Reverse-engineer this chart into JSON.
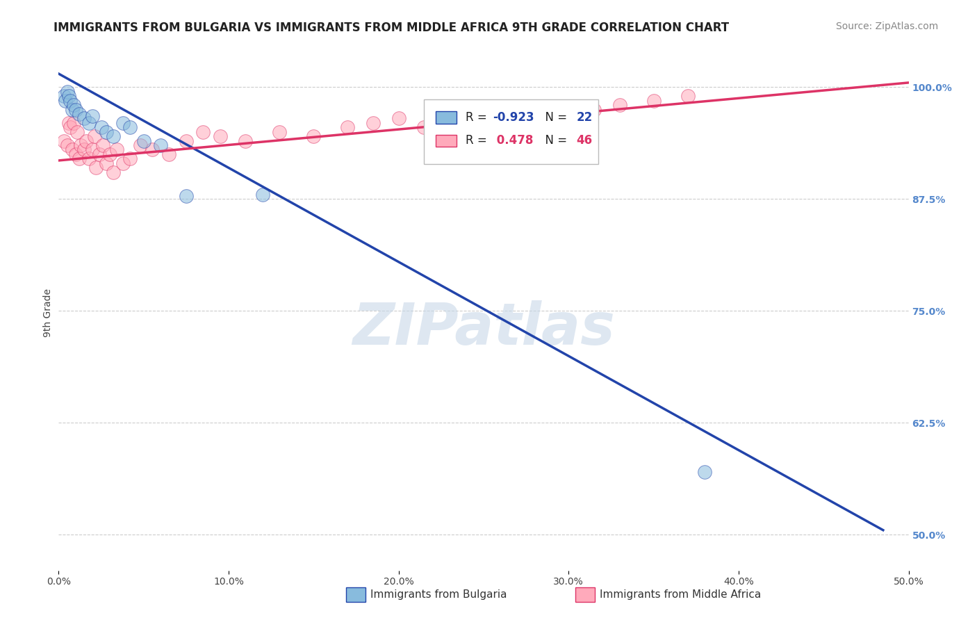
{
  "title": "IMMIGRANTS FROM BULGARIA VS IMMIGRANTS FROM MIDDLE AFRICA 9TH GRADE CORRELATION CHART",
  "source_text": "Source: ZipAtlas.com",
  "ylabel": "9th Grade",
  "xlim": [
    0.0,
    0.5
  ],
  "ylim": [
    0.46,
    1.035
  ],
  "xtick_labels": [
    "0.0%",
    "10.0%",
    "20.0%",
    "30.0%",
    "40.0%",
    "50.0%"
  ],
  "xtick_values": [
    0.0,
    0.1,
    0.2,
    0.3,
    0.4,
    0.5
  ],
  "ytick_labels": [
    "100.0%",
    "87.5%",
    "75.0%",
    "62.5%",
    "50.0%"
  ],
  "ytick_values": [
    1.0,
    0.875,
    0.75,
    0.625,
    0.5
  ],
  "watermark": "ZIPatlas",
  "bulgaria_color": "#88BBDD",
  "middle_africa_color": "#FFAABB",
  "bulgaria_line_color": "#2244AA",
  "middle_africa_line_color": "#DD3366",
  "R_bulgaria": -0.923,
  "N_bulgaria": 22,
  "R_middle_africa": 0.478,
  "N_middle_africa": 46,
  "legend_label_bulgaria": "Immigrants from Bulgaria",
  "legend_label_middle_africa": "Immigrants from Middle Africa",
  "bulgaria_line_x0": 0.0,
  "bulgaria_line_y0": 1.015,
  "bulgaria_line_x1": 0.485,
  "bulgaria_line_y1": 0.505,
  "middle_africa_line_x0": 0.0,
  "middle_africa_line_y0": 0.918,
  "middle_africa_line_x1": 0.5,
  "middle_africa_line_y1": 1.005,
  "bulgaria_scatter_x": [
    0.003,
    0.004,
    0.005,
    0.006,
    0.007,
    0.008,
    0.009,
    0.01,
    0.012,
    0.015,
    0.018,
    0.02,
    0.025,
    0.028,
    0.032,
    0.038,
    0.042,
    0.05,
    0.06,
    0.075,
    0.12,
    0.38
  ],
  "bulgaria_scatter_y": [
    0.99,
    0.985,
    0.995,
    0.99,
    0.985,
    0.975,
    0.98,
    0.975,
    0.97,
    0.965,
    0.96,
    0.968,
    0.955,
    0.95,
    0.945,
    0.96,
    0.955,
    0.94,
    0.935,
    0.878,
    0.88,
    0.57
  ],
  "middle_africa_scatter_x": [
    0.003,
    0.005,
    0.006,
    0.007,
    0.008,
    0.009,
    0.01,
    0.011,
    0.012,
    0.013,
    0.015,
    0.016,
    0.018,
    0.02,
    0.021,
    0.022,
    0.024,
    0.026,
    0.028,
    0.03,
    0.032,
    0.034,
    0.038,
    0.042,
    0.048,
    0.055,
    0.065,
    0.075,
    0.085,
    0.095,
    0.11,
    0.13,
    0.15,
    0.17,
    0.185,
    0.2,
    0.215,
    0.23,
    0.25,
    0.27,
    0.285,
    0.3,
    0.315,
    0.33,
    0.35,
    0.37
  ],
  "middle_africa_scatter_y": [
    0.94,
    0.935,
    0.96,
    0.955,
    0.93,
    0.96,
    0.925,
    0.95,
    0.92,
    0.935,
    0.93,
    0.94,
    0.92,
    0.93,
    0.945,
    0.91,
    0.925,
    0.935,
    0.915,
    0.925,
    0.905,
    0.93,
    0.915,
    0.92,
    0.935,
    0.93,
    0.925,
    0.94,
    0.95,
    0.945,
    0.94,
    0.95,
    0.945,
    0.955,
    0.96,
    0.965,
    0.955,
    0.96,
    0.97,
    0.965,
    0.975,
    0.97,
    0.975,
    0.98,
    0.985,
    0.99
  ],
  "title_fontsize": 12,
  "source_fontsize": 10,
  "axis_label_fontsize": 10,
  "tick_fontsize": 10,
  "legend_fontsize": 11,
  "watermark_fontsize": 60,
  "background_color": "#FFFFFF",
  "grid_color": "#CCCCCC",
  "right_tick_color": "#5588CC"
}
